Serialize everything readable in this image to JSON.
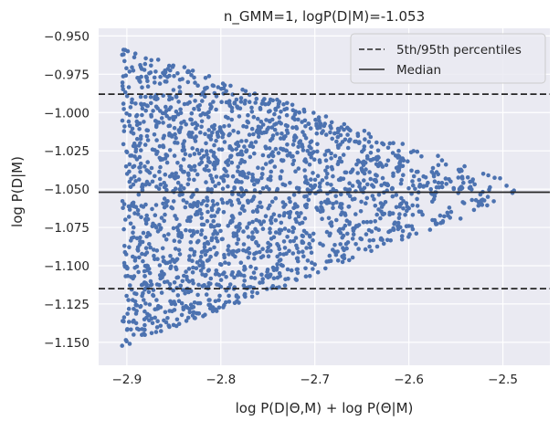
{
  "chart_data": {
    "type": "scatter",
    "title": "n_GMM=1, logP(D|M)=-1.053",
    "xlabel": "log P(D|Θ,M) + log P(Θ|M)",
    "ylabel": "log P(D|M)",
    "xlim": [
      -2.93,
      -2.45
    ],
    "ylim": [
      -1.165,
      -0.945
    ],
    "x_ticks": [
      -2.9,
      -2.8,
      -2.7,
      -2.6,
      -2.5
    ],
    "x_tick_labels": [
      "−2.9",
      "−2.8",
      "−2.7",
      "−2.6",
      "−2.5"
    ],
    "y_ticks": [
      -0.95,
      -0.975,
      -1.0,
      -1.025,
      -1.05,
      -1.075,
      -1.1,
      -1.125,
      -1.15
    ],
    "y_tick_labels": [
      "−0.950",
      "−0.975",
      "−1.000",
      "−1.025",
      "−1.050",
      "−1.075",
      "−1.100",
      "−1.125",
      "−1.150"
    ],
    "grid": true,
    "legend_position": "top-right",
    "point_color": "#4c72b0",
    "scatter_summary": {
      "n_points_approx": 2000,
      "x_range": [
        -2.905,
        -2.485
      ],
      "y_range": [
        -1.153,
        -0.956
      ],
      "y_center": -1.052,
      "note": "points form a wedge: wide y-spread at left, narrowing toward the right"
    },
    "hlines": [
      {
        "legend": "5th/95th percentiles",
        "y": -0.988,
        "style": "dashed",
        "color": "#262626"
      },
      {
        "legend": "Median",
        "y": -1.052,
        "style": "solid",
        "color": "#262626"
      },
      {
        "legend": "5th/95th percentiles",
        "y": -1.115,
        "style": "dashed",
        "color": "#262626"
      }
    ],
    "legend": [
      {
        "label": "5th/95th percentiles",
        "style": "dashed"
      },
      {
        "label": "Median",
        "style": "solid"
      }
    ]
  }
}
